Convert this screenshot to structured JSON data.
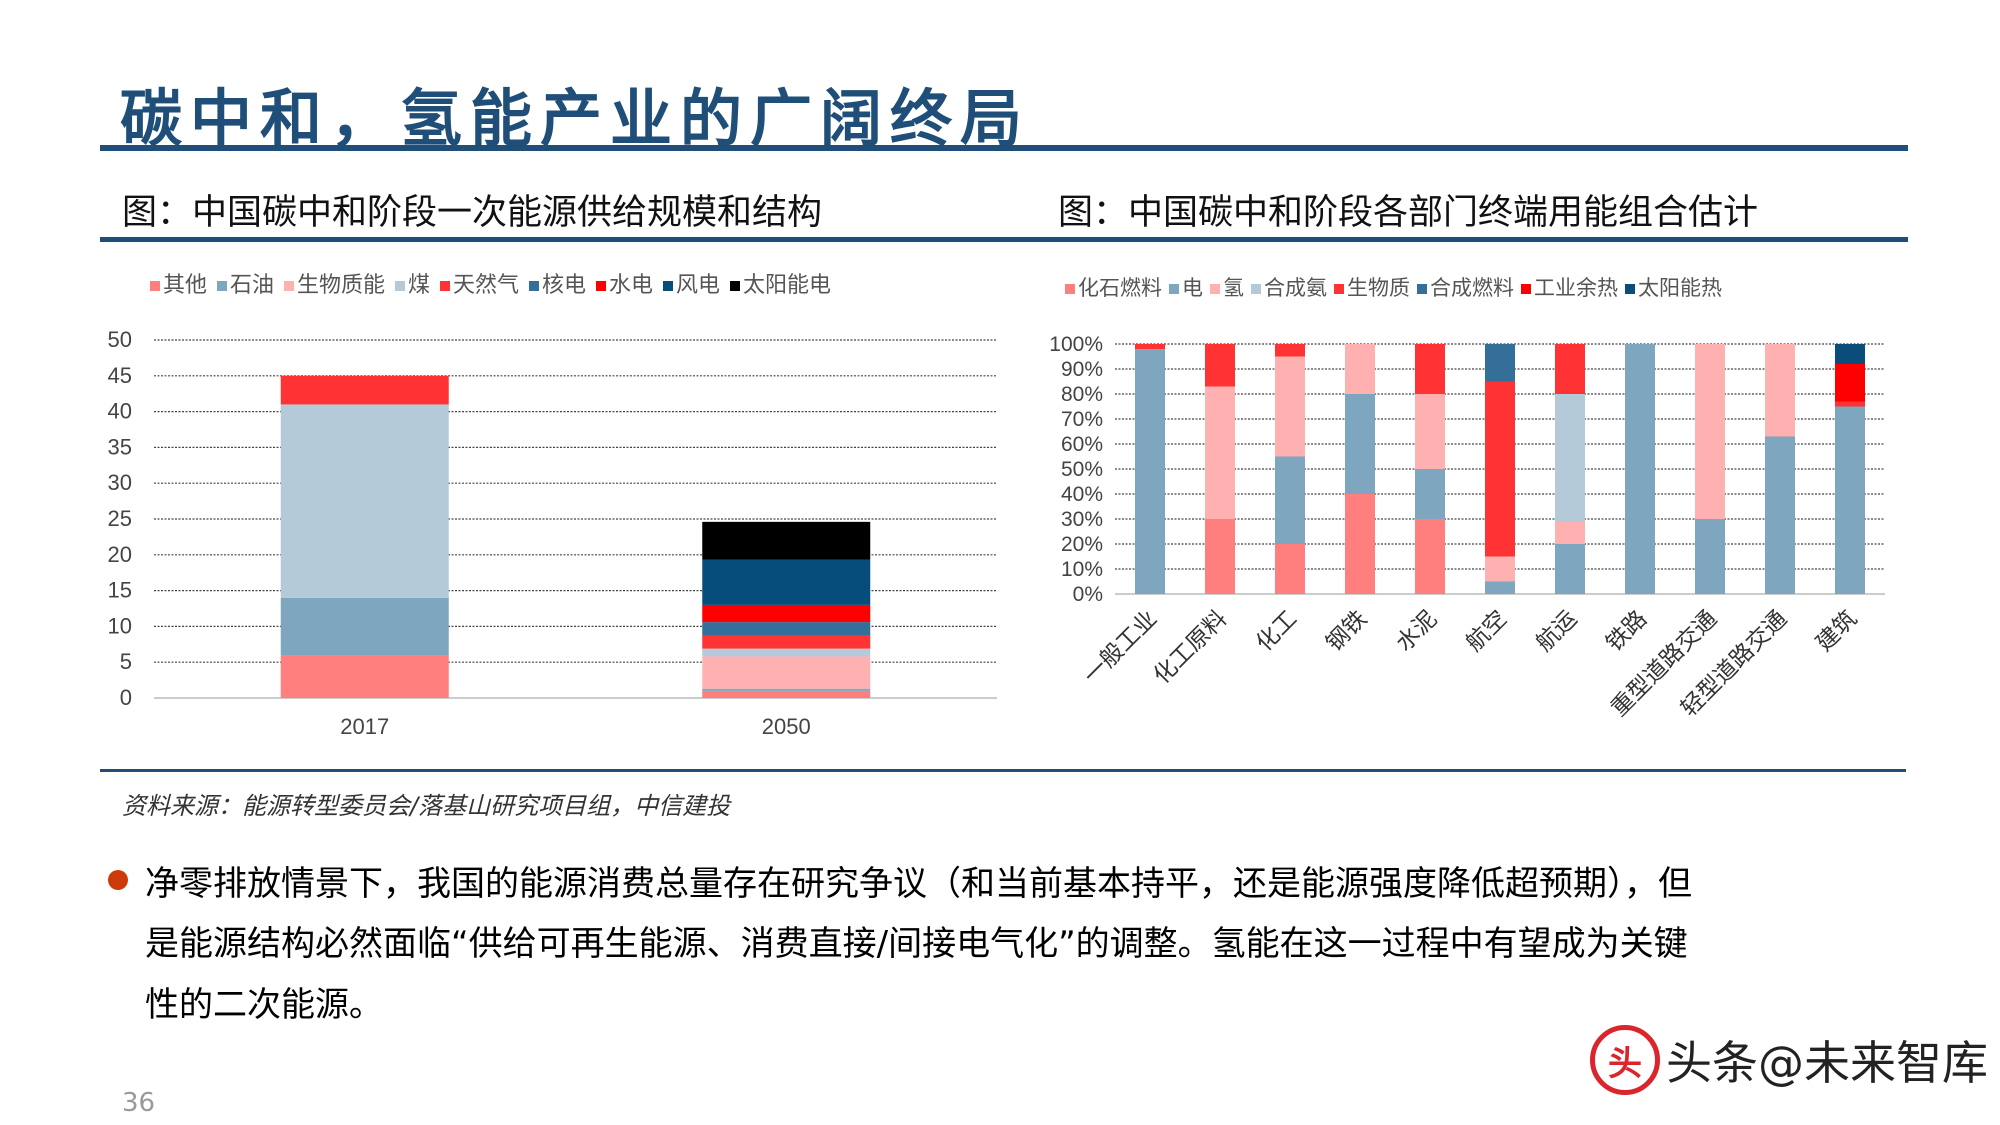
{
  "title": "碳中和，氢能产业的广阔终局",
  "left_subtitle": "图：中国碳中和阶段一次能源供给规模和结构",
  "right_subtitle": "图：中国碳中和阶段各部门终端用能组合估计",
  "source": "资料来源：能源转型委员会/落基山研究项目组，中信建投",
  "paragraph_lines": [
    "净零排放情景下，我国的能源消费总量存在研究争议（和当前基本持平，还是能源强度降低超预期），但",
    "是能源结构必然面临“供给可再生能源、消费直接/间接电气化”的调整。氢能在这一过程中有望成为关键",
    "性的二次能源。"
  ],
  "page_number": "36",
  "watermark": {
    "logo": "头",
    "text": "头条@未来智库"
  },
  "colors": {
    "title": "#1f4e79",
    "bullet": "#cc3a0a"
  },
  "chart_data": [
    {
      "type": "bar",
      "stacked": true,
      "categories": [
        "2017",
        "2050"
      ],
      "ylim": [
        0,
        50
      ],
      "yticks": [
        "0",
        "5",
        "10",
        "15",
        "20",
        "25",
        "30",
        "35",
        "40",
        "45",
        "50"
      ],
      "grid": true,
      "legend_position": "top",
      "series": [
        {
          "name": "其他",
          "color": "#ff7f7f",
          "values": [
            6,
            1.0
          ]
        },
        {
          "name": "石油",
          "color": "#7fa6bf",
          "values": [
            8,
            0.3
          ]
        },
        {
          "name": "生物质能",
          "color": "#ffb0b0",
          "values": [
            0,
            4.5
          ]
        },
        {
          "name": "煤",
          "color": "#b4cad8",
          "values": [
            27,
            1.1
          ]
        },
        {
          "name": "天然气",
          "color": "#ff3333",
          "values": [
            4,
            1.9
          ]
        },
        {
          "name": "核电",
          "color": "#336f99",
          "values": [
            0,
            1.8
          ]
        },
        {
          "name": "水电",
          "color": "#ff0000",
          "values": [
            0,
            2.4
          ]
        },
        {
          "name": "风电",
          "color": "#064d7c",
          "values": [
            0,
            6.3
          ]
        },
        {
          "name": "太阳能电",
          "color": "#000000",
          "values": [
            0,
            5.3
          ]
        }
      ]
    },
    {
      "type": "bar",
      "stacked": true,
      "percent": true,
      "categories": [
        "一般工业",
        "化工原料",
        "化工",
        "钢铁",
        "水泥",
        "航空",
        "航运",
        "铁路",
        "重型道路交通",
        "轻型道路交通",
        "建筑"
      ],
      "ylim": [
        0,
        100
      ],
      "yticks": [
        "0%",
        "10%",
        "20%",
        "30%",
        "40%",
        "50%",
        "60%",
        "70%",
        "80%",
        "90%",
        "100%"
      ],
      "grid": true,
      "legend_position": "top",
      "series": [
        {
          "name": "化石燃料",
          "color": "#ff7f7f",
          "values": [
            0,
            30,
            20,
            40,
            30,
            0,
            0,
            0,
            0,
            0,
            0
          ]
        },
        {
          "name": "电",
          "color": "#7fa6bf",
          "values": [
            98,
            0,
            35,
            40,
            20,
            5,
            20,
            100,
            30,
            63,
            75
          ]
        },
        {
          "name": "氢",
          "color": "#ffb0b0",
          "values": [
            0,
            53,
            40,
            20,
            30,
            10,
            9,
            0,
            70,
            37,
            0
          ]
        },
        {
          "name": "合成氨",
          "color": "#b4cad8",
          "values": [
            0,
            0,
            0,
            0,
            0,
            0,
            51,
            0,
            0,
            0,
            0
          ]
        },
        {
          "name": "生物质",
          "color": "#ff3333",
          "values": [
            2,
            17,
            5,
            0,
            20,
            70,
            20,
            0,
            0,
            0,
            2
          ]
        },
        {
          "name": "合成燃料",
          "color": "#336f99",
          "values": [
            0,
            0,
            0,
            0,
            0,
            15,
            0,
            0,
            0,
            0,
            0
          ]
        },
        {
          "name": "工业余热",
          "color": "#ff0000",
          "values": [
            0,
            0,
            0,
            0,
            0,
            0,
            0,
            0,
            0,
            0,
            15
          ]
        },
        {
          "name": "太阳能热",
          "color": "#0a4d7a",
          "values": [
            0,
            0,
            0,
            0,
            0,
            0,
            0,
            0,
            0,
            0,
            8
          ]
        }
      ]
    }
  ]
}
